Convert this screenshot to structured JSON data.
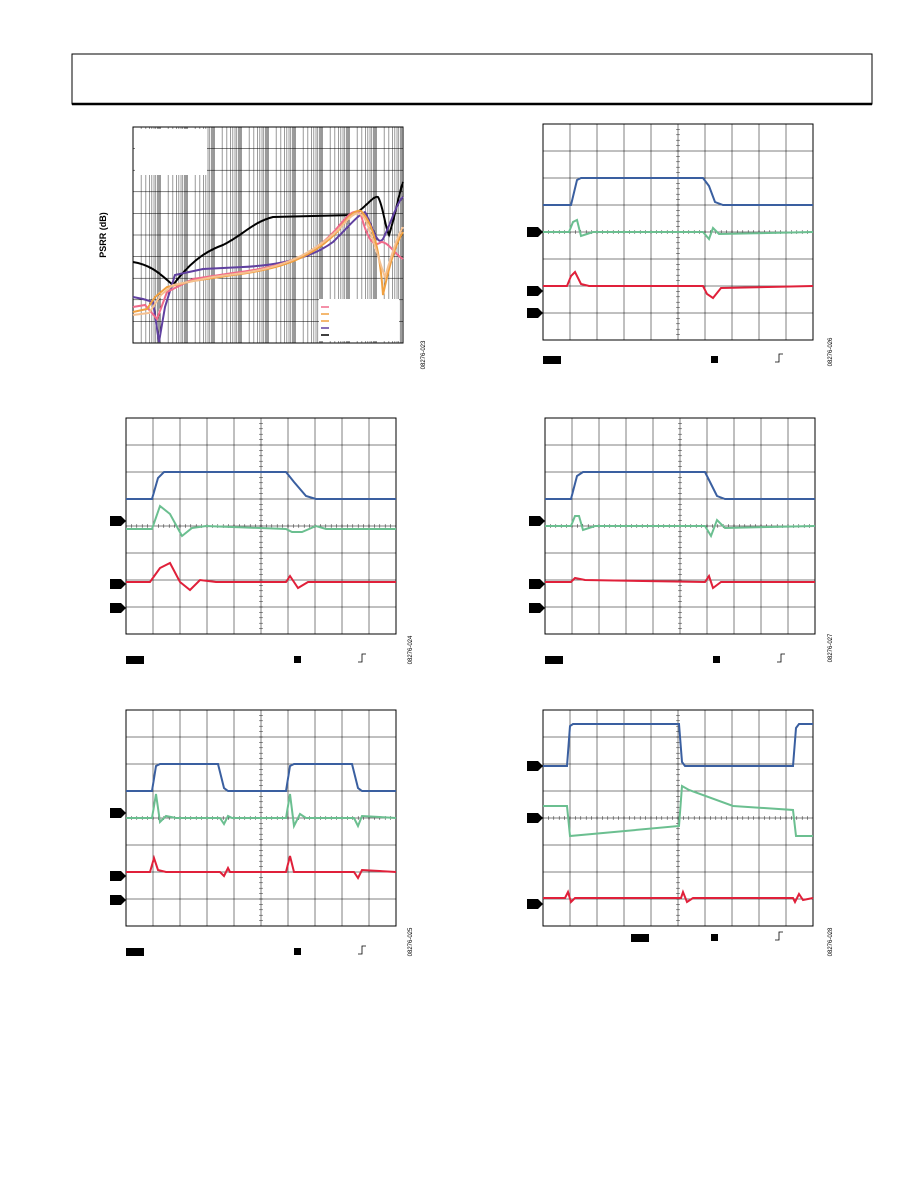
{
  "figures": [
    {
      "y_label": "PSRR (dB)",
      "code": "08276-023"
    },
    {
      "code": "08276-026"
    },
    {
      "code": "08276-024"
    },
    {
      "code": "08276-027"
    },
    {
      "code": "08276-025"
    },
    {
      "code": "08276-028"
    }
  ]
}
